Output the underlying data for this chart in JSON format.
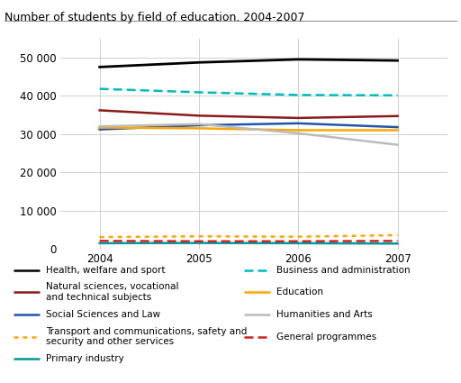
{
  "title": "Number of students by field of education. 2004-2007",
  "years": [
    2004,
    2005,
    2006,
    2007
  ],
  "series": [
    {
      "label": "Health, welfare and sport",
      "values": [
        47500,
        48700,
        49500,
        49200
      ],
      "color": "#000000",
      "linestyle": "solid",
      "linewidth": 2.0
    },
    {
      "label": "Natural sciences, vocational\nand technical subjects",
      "values": [
        36200,
        34800,
        34200,
        34700
      ],
      "color": "#8B1A1A",
      "linestyle": "solid",
      "linewidth": 1.8
    },
    {
      "label": "Social Sciences and Law",
      "values": [
        31200,
        32300,
        32800,
        31800
      ],
      "color": "#2255AA",
      "linestyle": "solid",
      "linewidth": 1.8
    },
    {
      "label": "Transport and communications, safety and\nsecurity and other services",
      "values": [
        3100,
        3300,
        3200,
        3600
      ],
      "color": "#FFA500",
      "linestyle": "dotted",
      "linewidth": 1.8
    },
    {
      "label": "Primary industry",
      "values": [
        1500,
        1550,
        1500,
        1400
      ],
      "color": "#009999",
      "linestyle": "solid",
      "linewidth": 1.8
    },
    {
      "label": "Business and administration",
      "values": [
        41800,
        40900,
        40200,
        40100
      ],
      "color": "#00BBBB",
      "linestyle": "dashed",
      "linewidth": 1.8
    },
    {
      "label": "Education",
      "values": [
        31700,
        31500,
        31000,
        31000
      ],
      "color": "#FFA500",
      "linestyle": "solid",
      "linewidth": 1.8
    },
    {
      "label": "Humanities and Arts",
      "values": [
        32000,
        32600,
        30200,
        27200
      ],
      "color": "#BBBBBB",
      "linestyle": "solid",
      "linewidth": 1.8
    },
    {
      "label": "General programmes",
      "values": [
        2100,
        2000,
        2000,
        2100
      ],
      "color": "#CC2222",
      "linestyle": "dashed",
      "linewidth": 1.8
    }
  ],
  "ylim": [
    0,
    55000
  ],
  "yticks": [
    0,
    10000,
    20000,
    30000,
    40000,
    50000
  ],
  "ytick_labels": [
    "0",
    "10 000",
    "20 000",
    "30 000",
    "40 000",
    "50 000"
  ],
  "background_color": "#ffffff",
  "grid_color": "#d0d0d0",
  "legend_left": [
    {
      "label": "Health, welfare and sport",
      "color": "#000000",
      "linestyle": "solid"
    },
    {
      "label": "Natural sciences, vocational\nand technical subjects",
      "color": "#8B1A1A",
      "linestyle": "solid"
    },
    {
      "label": "Social Sciences and Law",
      "color": "#2255AA",
      "linestyle": "solid"
    },
    {
      "label": "Transport and communications, safety and\nsecurity and other services",
      "color": "#FFA500",
      "linestyle": "dotted"
    },
    {
      "label": "Primary industry",
      "color": "#009999",
      "linestyle": "solid"
    }
  ],
  "legend_right": [
    {
      "label": "Business and administration",
      "color": "#00BBBB",
      "linestyle": "dashed"
    },
    {
      "label": "Education",
      "color": "#FFA500",
      "linestyle": "solid"
    },
    {
      "label": "Humanities and Arts",
      "color": "#BBBBBB",
      "linestyle": "solid"
    },
    {
      "label": "General programmes",
      "color": "#CC2222",
      "linestyle": "dashed"
    }
  ]
}
